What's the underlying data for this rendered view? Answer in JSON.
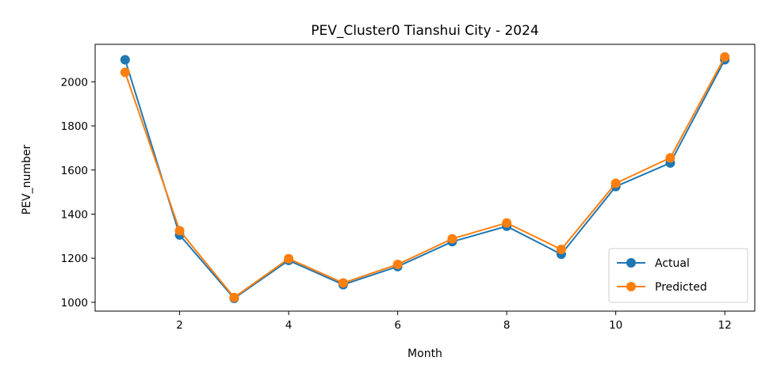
{
  "chart_data": {
    "type": "line",
    "title": "PEV_Cluster0 Tianshui City - 2024",
    "xlabel": "Month",
    "ylabel": "PEV_number",
    "x": [
      1,
      2,
      3,
      4,
      5,
      6,
      7,
      8,
      9,
      10,
      11,
      12
    ],
    "xlim": [
      0.45,
      12.55
    ],
    "ylim": [
      960,
      2170
    ],
    "xticks": [
      2,
      4,
      6,
      8,
      10,
      12
    ],
    "yticks": [
      1000,
      1200,
      1400,
      1600,
      1800,
      2000
    ],
    "grid": false,
    "legend_position": "lower right",
    "series": [
      {
        "name": "Actual",
        "color": "#1f77b4",
        "values": [
          2100,
          1305,
          1018,
          1190,
          1080,
          1162,
          1275,
          1345,
          1218,
          1525,
          1632,
          2100
        ]
      },
      {
        "name": "Predicted",
        "color": "#ff7f0e",
        "values": [
          2043,
          1325,
          1022,
          1198,
          1088,
          1172,
          1288,
          1360,
          1240,
          1540,
          1655,
          2113
        ]
      }
    ]
  }
}
